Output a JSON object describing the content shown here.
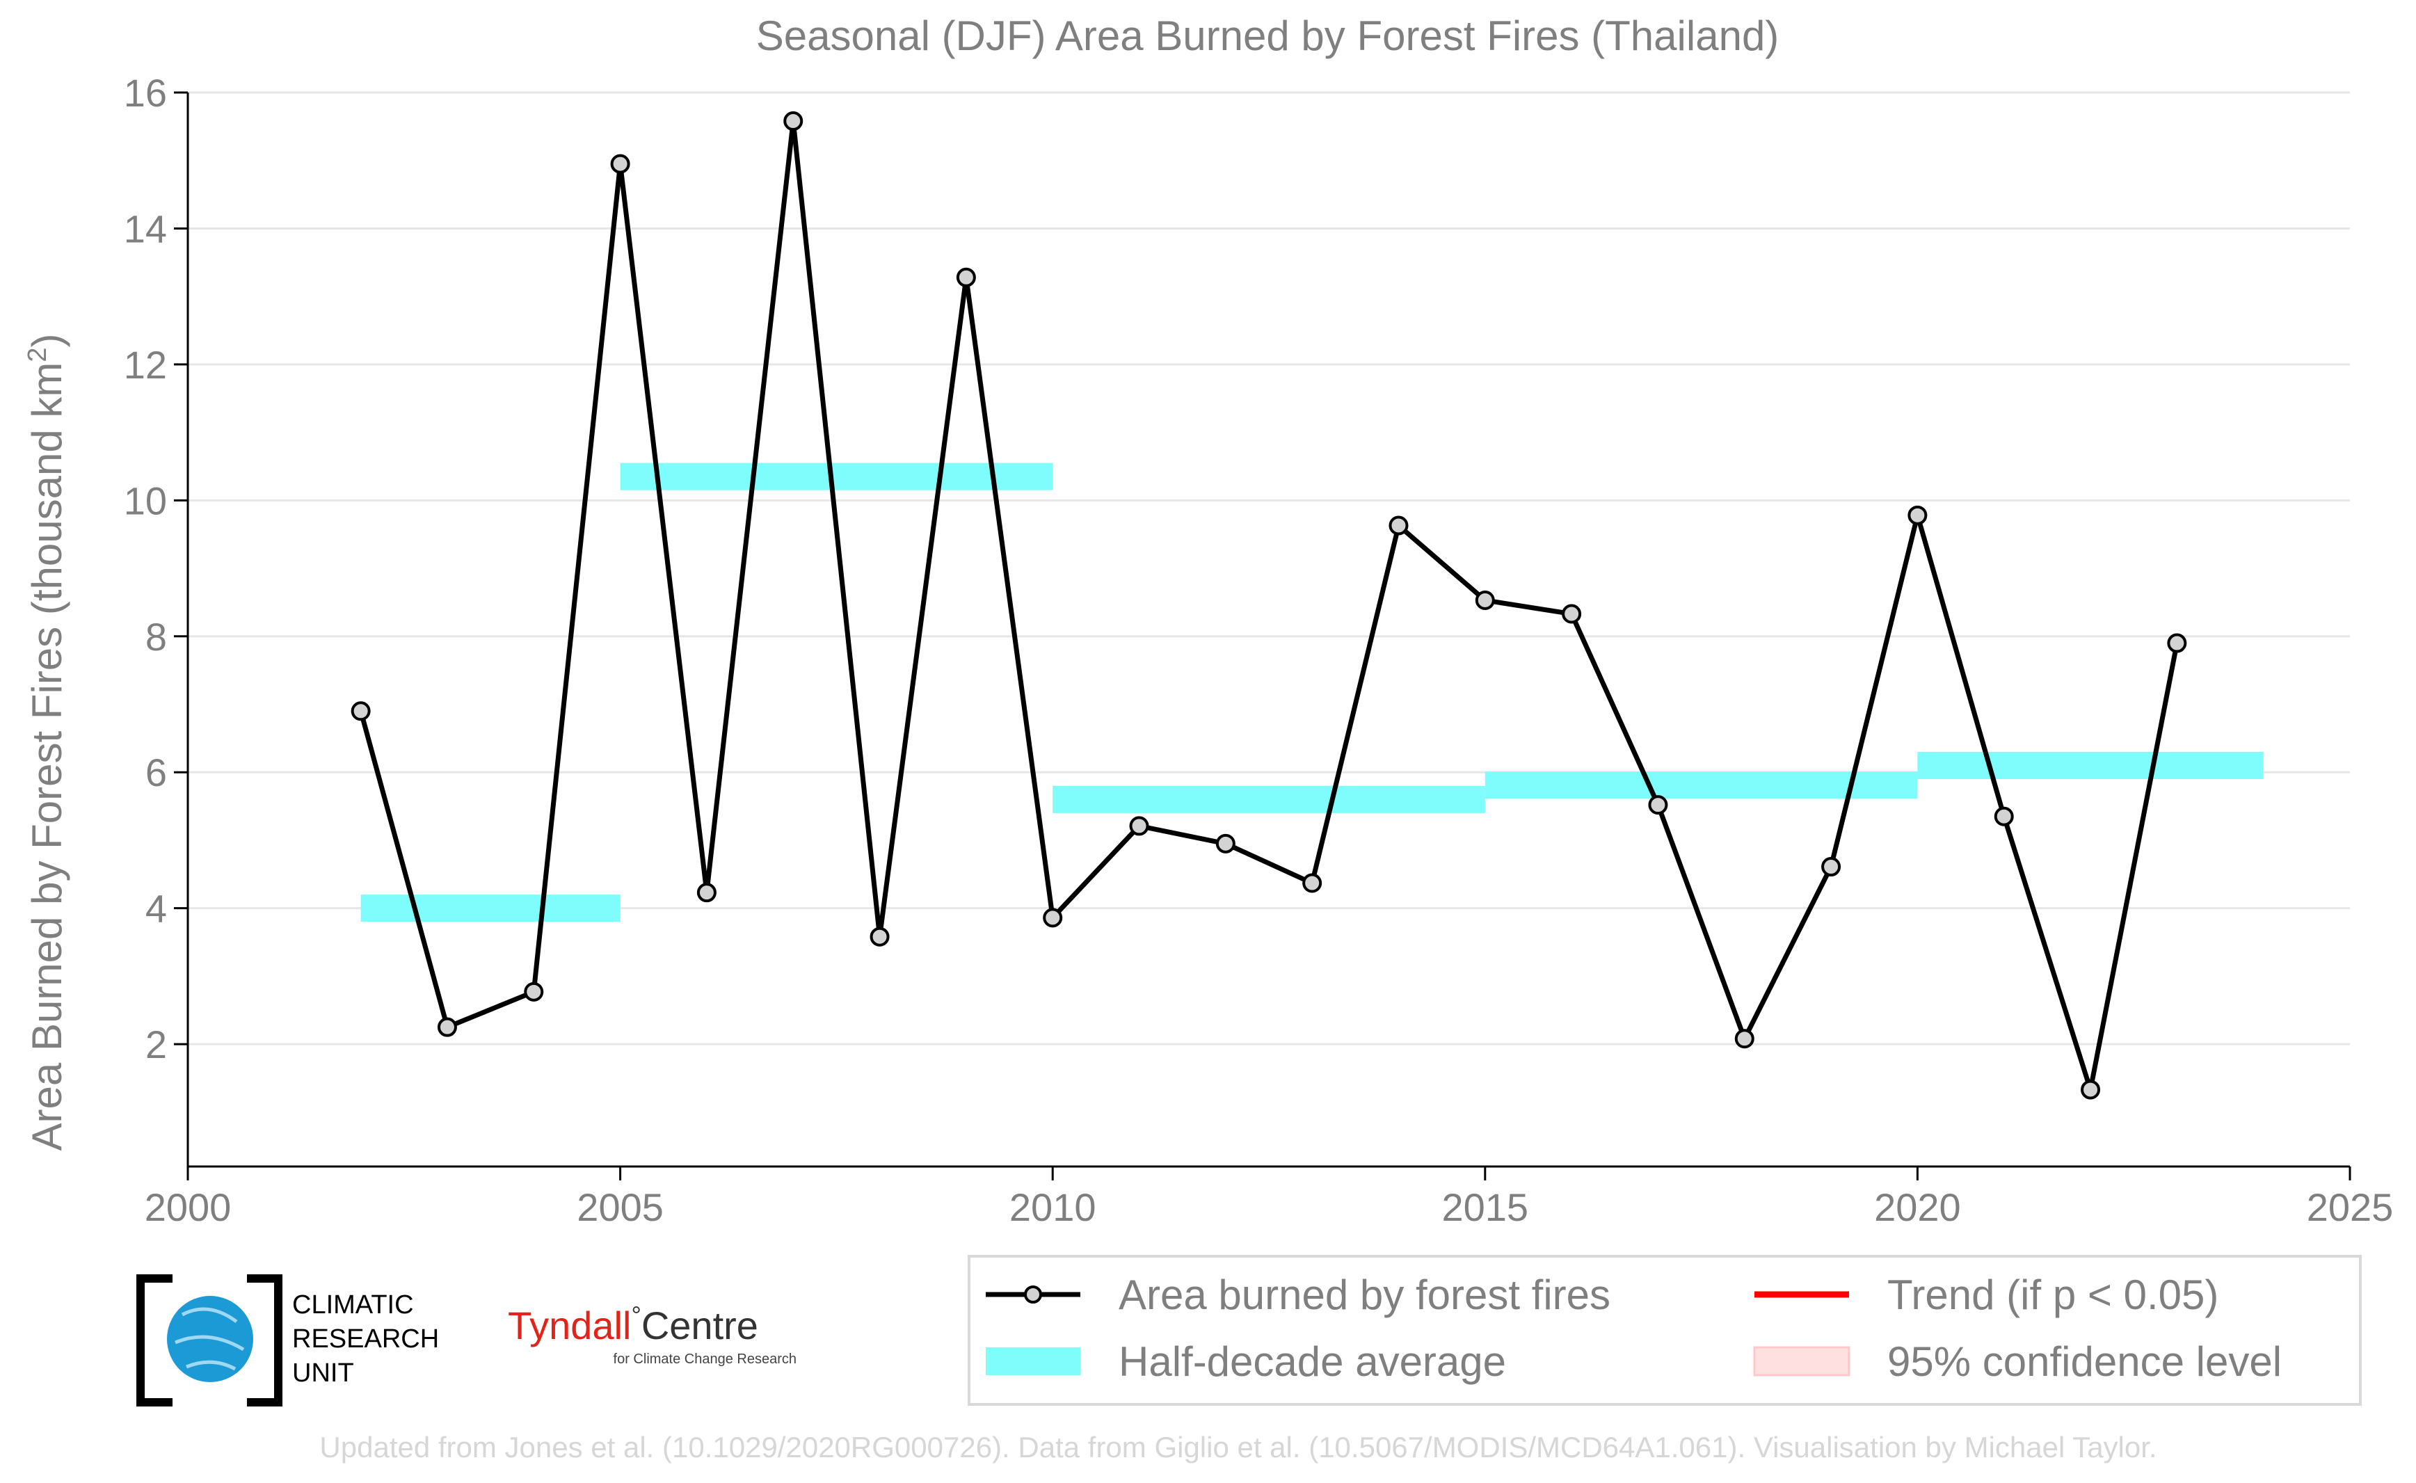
{
  "chart_data": {
    "type": "line",
    "title": "Seasonal (DJF) Area Burned by Forest Fires (Thailand)",
    "ylabel_main": "Area Burned by Forest Fires (thousand km",
    "ylabel_sup": "2",
    "ylabel_close": ")",
    "xlabel": "",
    "xlim": [
      2000,
      2025
    ],
    "ylim": [
      0.2,
      16
    ],
    "xticks": [
      2000,
      2005,
      2010,
      2015,
      2020,
      2025
    ],
    "yticks": [
      2,
      4,
      6,
      8,
      10,
      12,
      14,
      16
    ],
    "grid": "horizontal",
    "series": [
      {
        "name": "Area burned by forest fires",
        "color": "#000000",
        "marker": "circle",
        "x": [
          2002,
          2003,
          2004,
          2005,
          2006,
          2007,
          2008,
          2009,
          2010,
          2011,
          2012,
          2013,
          2014,
          2015,
          2016,
          2017,
          2018,
          2019,
          2020,
          2021,
          2022,
          2023
        ],
        "y": [
          6.9,
          2.25,
          2.77,
          14.95,
          4.23,
          15.58,
          3.58,
          13.28,
          3.86,
          5.21,
          4.95,
          4.37,
          9.63,
          8.53,
          8.33,
          5.52,
          2.08,
          4.61,
          9.78,
          5.35,
          1.33,
          7.9
        ]
      }
    ],
    "half_decade_average": {
      "name": "Half-decade average",
      "color": "#7ffcfc",
      "segments": [
        {
          "x0": 2002,
          "x1": 2005,
          "y": 4.0
        },
        {
          "x0": 2005,
          "x1": 2010,
          "y": 10.35
        },
        {
          "x0": 2010,
          "x1": 2015,
          "y": 5.6
        },
        {
          "x0": 2015,
          "x1": 2020,
          "y": 5.81
        },
        {
          "x0": 2020,
          "x1": 2024,
          "y": 6.1
        }
      ]
    },
    "legend": {
      "placement": "bottom-right",
      "entries": [
        {
          "label": "Area burned by forest fires",
          "kind": "line-marker",
          "color": "#000000"
        },
        {
          "label": "Trend (if p < 0.05)",
          "kind": "line",
          "color": "#ff0000"
        },
        {
          "label": "Half-decade average",
          "kind": "band",
          "color": "#7ffcfc"
        },
        {
          "label": "95% confidence level",
          "kind": "band",
          "color": "#ffdede"
        }
      ]
    }
  },
  "logos": {
    "cru": [
      "CLIMATIC",
      "RESEARCH",
      "UNIT"
    ],
    "tyndall_main": "Tyndall",
    "tyndall_degree": "°",
    "tyndall_centre": "Centre",
    "tyndall_sub": "for Climate Change Research"
  },
  "credit": "Updated from Jones et al. (10.1029/2020RG000726). Data from Giglio et al. (10.5067/MODIS/MCD64A1.061). Visualisation by Michael Taylor."
}
